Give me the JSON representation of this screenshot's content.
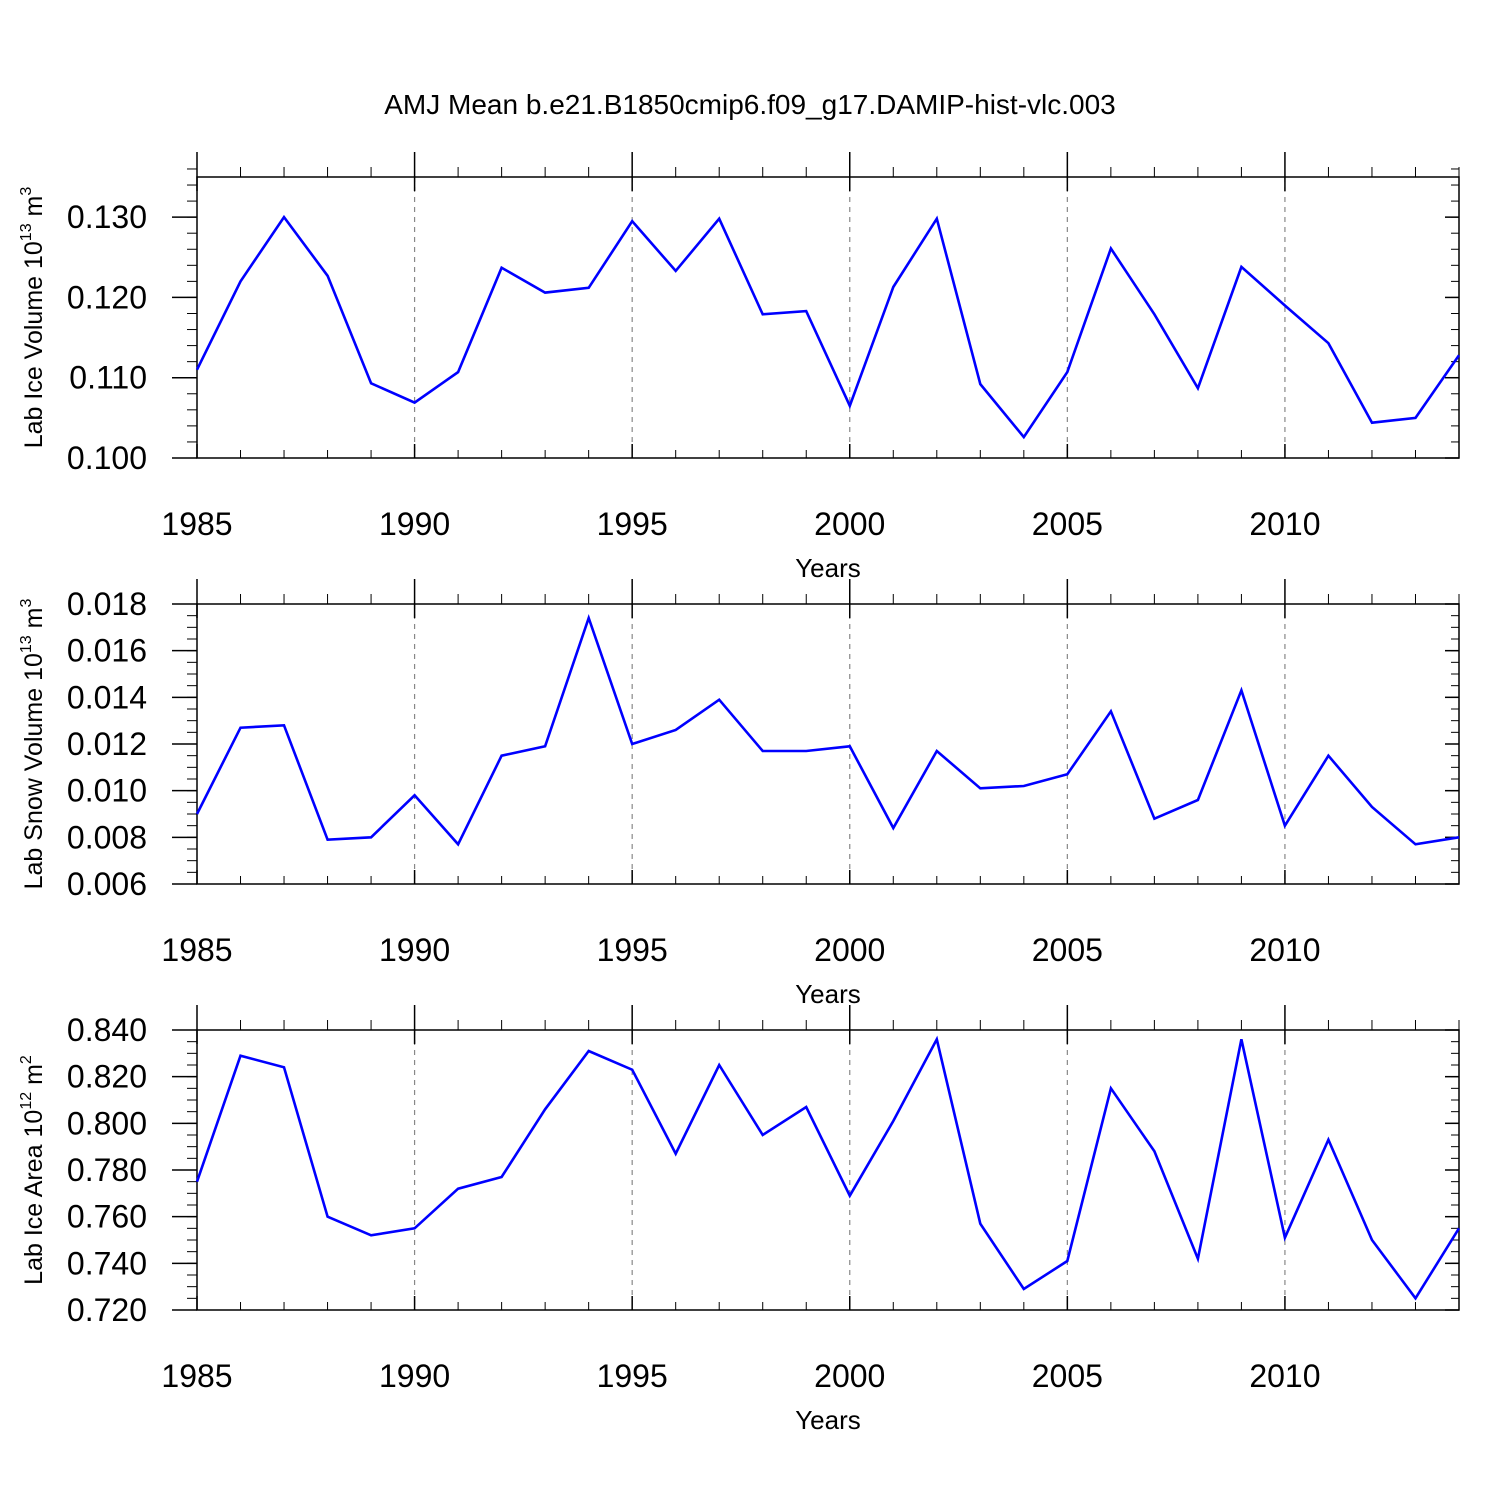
{
  "figure": {
    "title": "AMJ Mean b.e21.B1850cmip6.f09_g17.DAMIP-hist-vlc.003"
  },
  "colors": {
    "line": "#0000ff",
    "axis": "#000000",
    "grid": "#888888"
  },
  "chart_data": [
    {
      "type": "line",
      "name": "lab-ice-volume",
      "ylabel_main": "Lab Ice Volume 10",
      "ylabel_exp": "13",
      "ylabel_unit": " m",
      "ylabel_unit_exp": "3",
      "xlabel": "Years",
      "xlim": [
        1985,
        2014
      ],
      "ylim": [
        0.1,
        0.135
      ],
      "xticks": [
        1985,
        1990,
        1995,
        2000,
        2005,
        2010
      ],
      "xtick_labels": [
        "1985",
        "1990",
        "1995",
        "2000",
        "2005",
        "2010"
      ],
      "yticks": [
        0.1,
        0.11,
        0.12,
        0.13
      ],
      "ytick_labels": [
        "0.100",
        "0.110",
        "0.120",
        "0.130"
      ],
      "yminor": 0.002,
      "grid": "vertical dashed at major x ticks",
      "x": [
        1985,
        1986,
        1987,
        1988,
        1989,
        1990,
        1991,
        1992,
        1993,
        1994,
        1995,
        1996,
        1997,
        1998,
        1999,
        2000,
        2001,
        2002,
        2003,
        2004,
        2005,
        2006,
        2007,
        2008,
        2009,
        2010,
        2011,
        2012,
        2013,
        2014
      ],
      "values": [
        0.111,
        0.122,
        0.13,
        0.1227,
        0.1093,
        0.1069,
        0.1107,
        0.1237,
        0.1206,
        0.1212,
        0.1295,
        0.1233,
        0.1298,
        0.1179,
        0.1183,
        0.1065,
        0.1213,
        0.1298,
        0.1092,
        0.1026,
        0.1107,
        0.1261,
        0.1179,
        0.1087,
        0.1238,
        0.119,
        0.1143,
        0.1044,
        0.105,
        0.1128
      ]
    },
    {
      "type": "line",
      "name": "lab-snow-volume",
      "ylabel_main": "Lab Snow Volume 10",
      "ylabel_exp": "13",
      "ylabel_unit": " m",
      "ylabel_unit_exp": "3",
      "xlabel": "Years",
      "xlim": [
        1985,
        2014
      ],
      "ylim": [
        0.006,
        0.018
      ],
      "xticks": [
        1985,
        1990,
        1995,
        2000,
        2005,
        2010
      ],
      "xtick_labels": [
        "1985",
        "1990",
        "1995",
        "2000",
        "2005",
        "2010"
      ],
      "yticks": [
        0.006,
        0.008,
        0.01,
        0.012,
        0.014,
        0.016,
        0.018
      ],
      "ytick_labels": [
        "0.006",
        "0.008",
        "0.010",
        "0.012",
        "0.014",
        "0.016",
        "0.018"
      ],
      "yminor": 0.0005,
      "grid": "vertical dashed at major x ticks",
      "x": [
        1985,
        1986,
        1987,
        1988,
        1989,
        1990,
        1991,
        1992,
        1993,
        1994,
        1995,
        1996,
        1997,
        1998,
        1999,
        2000,
        2001,
        2002,
        2003,
        2004,
        2005,
        2006,
        2007,
        2008,
        2009,
        2010,
        2011,
        2012,
        2013,
        2014
      ],
      "values": [
        0.009,
        0.0127,
        0.0128,
        0.0079,
        0.008,
        0.0098,
        0.0077,
        0.0115,
        0.0119,
        0.0174,
        0.012,
        0.0126,
        0.0139,
        0.0117,
        0.0117,
        0.0119,
        0.0084,
        0.0117,
        0.0101,
        0.0102,
        0.0107,
        0.0134,
        0.0088,
        0.0096,
        0.0143,
        0.0085,
        0.0115,
        0.0093,
        0.0077,
        0.008
      ]
    },
    {
      "type": "line",
      "name": "lab-ice-area",
      "ylabel_main": "Lab Ice Area 10",
      "ylabel_exp": "12",
      "ylabel_unit": " m",
      "ylabel_unit_exp": "2",
      "xlabel": "Years",
      "xlim": [
        1985,
        2014
      ],
      "ylim": [
        0.72,
        0.84
      ],
      "xticks": [
        1985,
        1990,
        1995,
        2000,
        2005,
        2010
      ],
      "xtick_labels": [
        "1985",
        "1990",
        "1995",
        "2000",
        "2005",
        "2010"
      ],
      "yticks": [
        0.72,
        0.74,
        0.76,
        0.78,
        0.8,
        0.82,
        0.84
      ],
      "ytick_labels": [
        "0.720",
        "0.740",
        "0.760",
        "0.780",
        "0.800",
        "0.820",
        "0.840"
      ],
      "yminor": 0.005,
      "grid": "vertical dashed at major x ticks",
      "x": [
        1985,
        1986,
        1987,
        1988,
        1989,
        1990,
        1991,
        1992,
        1993,
        1994,
        1995,
        1996,
        1997,
        1998,
        1999,
        2000,
        2001,
        2002,
        2003,
        2004,
        2005,
        2006,
        2007,
        2008,
        2009,
        2010,
        2011,
        2012,
        2013,
        2014
      ],
      "values": [
        0.775,
        0.829,
        0.824,
        0.76,
        0.752,
        0.755,
        0.772,
        0.777,
        0.806,
        0.831,
        0.823,
        0.787,
        0.825,
        0.795,
        0.807,
        0.769,
        0.801,
        0.836,
        0.757,
        0.729,
        0.741,
        0.815,
        0.788,
        0.742,
        0.836,
        0.751,
        0.793,
        0.75,
        0.725,
        0.755
      ]
    }
  ]
}
